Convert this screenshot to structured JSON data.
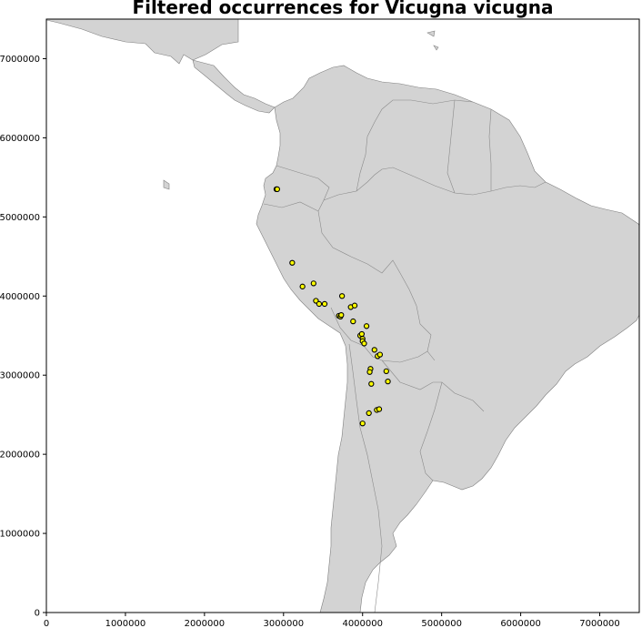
{
  "chart_data": {
    "type": "scatter",
    "title": "Filtered occurrences for Vicugna vicugna",
    "xlabel": "",
    "ylabel": "",
    "xlim": [
      0,
      7500000
    ],
    "ylim": [
      0,
      7500000
    ],
    "x_ticks": [
      0,
      1000000,
      2000000,
      3000000,
      4000000,
      5000000,
      6000000,
      7000000
    ],
    "x_tick_labels": [
      "0",
      "1000000",
      "2000000",
      "3000000",
      "4000000",
      "5000000",
      "6000000",
      "7000000"
    ],
    "y_ticks": [
      0,
      1000000,
      2000000,
      3000000,
      4000000,
      5000000,
      6000000,
      7000000
    ],
    "y_tick_labels": [
      "0",
      "1000000",
      "2000000",
      "3000000",
      "4000000",
      "5000000",
      "6000000",
      "7000000"
    ],
    "grid": false,
    "basemap": "grey landmass of South and Central America with country borders",
    "colors": {
      "land": "#d3d3d3",
      "border": "#7f7f7f",
      "marker_fill": "#ffff00",
      "marker_edge": "#000000"
    },
    "points": [
      {
        "x": 2910000,
        "y": 5350000
      },
      {
        "x": 2920000,
        "y": 5350000
      },
      {
        "x": 3110000,
        "y": 4420000
      },
      {
        "x": 3240000,
        "y": 4120000
      },
      {
        "x": 3380000,
        "y": 4160000
      },
      {
        "x": 3410000,
        "y": 3940000
      },
      {
        "x": 3450000,
        "y": 3900000
      },
      {
        "x": 3520000,
        "y": 3900000
      },
      {
        "x": 3740000,
        "y": 4000000
      },
      {
        "x": 3700000,
        "y": 3750000
      },
      {
        "x": 3720000,
        "y": 3740000
      },
      {
        "x": 3730000,
        "y": 3760000
      },
      {
        "x": 3850000,
        "y": 3860000
      },
      {
        "x": 3900000,
        "y": 3880000
      },
      {
        "x": 3880000,
        "y": 3680000
      },
      {
        "x": 3970000,
        "y": 3500000
      },
      {
        "x": 3990000,
        "y": 3520000
      },
      {
        "x": 4000000,
        "y": 3460000
      },
      {
        "x": 4000000,
        "y": 3430000
      },
      {
        "x": 4020000,
        "y": 3400000
      },
      {
        "x": 4050000,
        "y": 3620000
      },
      {
        "x": 4150000,
        "y": 3320000
      },
      {
        "x": 4190000,
        "y": 3240000
      },
      {
        "x": 4220000,
        "y": 3260000
      },
      {
        "x": 4100000,
        "y": 3080000
      },
      {
        "x": 4090000,
        "y": 3040000
      },
      {
        "x": 4300000,
        "y": 3050000
      },
      {
        "x": 4320000,
        "y": 2920000
      },
      {
        "x": 4110000,
        "y": 2890000
      },
      {
        "x": 4180000,
        "y": 2560000
      },
      {
        "x": 4210000,
        "y": 2570000
      },
      {
        "x": 4080000,
        "y": 2520000
      },
      {
        "x": 4000000,
        "y": 2390000
      }
    ]
  }
}
